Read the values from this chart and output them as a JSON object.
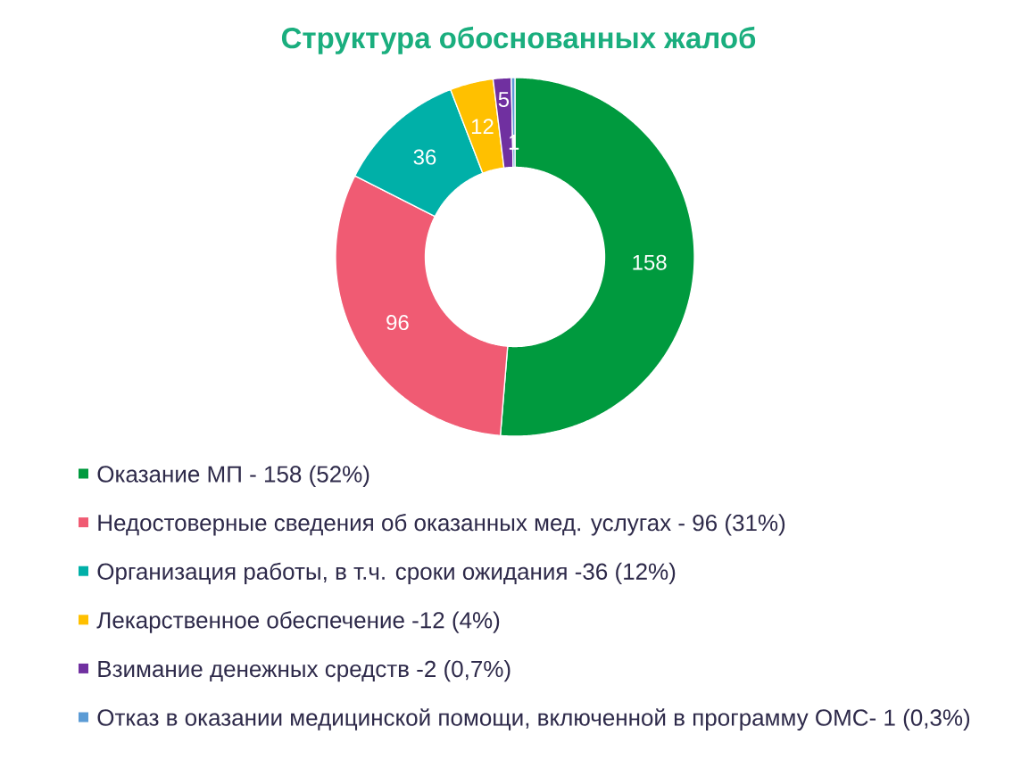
{
  "chart_data": {
    "type": "donut",
    "title": "Структура обоснованных жалоб",
    "categories": [
      "Оказание МП - 158 (52%)",
      "Недостоверные сведения об оказанных мед. услугах - 96 (31%)",
      "Организация работы, в т.ч. сроки ожидания -36 (12%)",
      "Лекарственное обеспечение -12 (4%)",
      "Взимание денежных средств -2 (0,7%)",
      "Отказ в оказании медицинской помощи, включенной в программу ОМС- 1 (0,3%)"
    ],
    "values": [
      158,
      96,
      36,
      12,
      5,
      1
    ],
    "colors": [
      "#009a3e",
      "#f05b73",
      "#00b0a8",
      "#ffc000",
      "#7030a0",
      "#5b9bd5"
    ],
    "data_labels": true,
    "legend": "bottom"
  }
}
